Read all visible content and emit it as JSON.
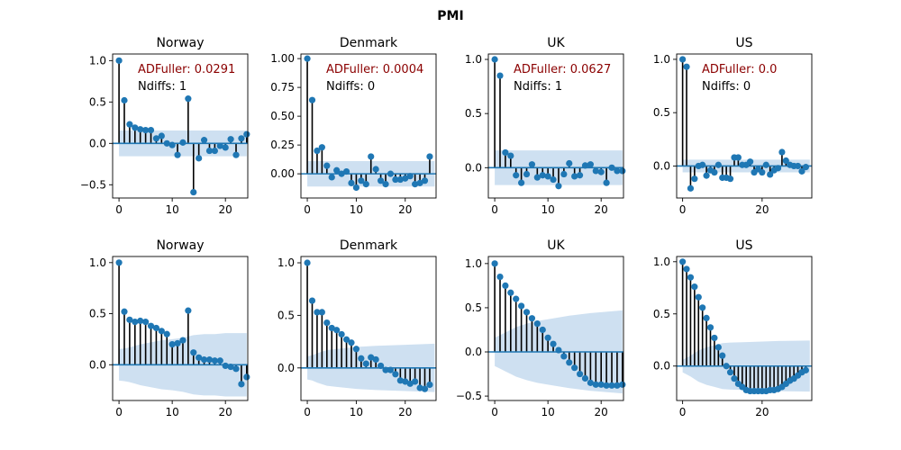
{
  "figure": {
    "title": "PMI",
    "colors": {
      "marker": "#1f77b4",
      "band": "#c6dbef",
      "stem": "#000000",
      "adf_text": "#8b0000",
      "ndiffs_text": "#000000"
    }
  },
  "chart_data": [
    {
      "type": "stem",
      "title": "Norway",
      "row": 0,
      "col": 0,
      "xlim": [
        -1.2,
        24.2
      ],
      "ylim": [
        -0.66,
        1.08
      ],
      "xticks": [
        0,
        10,
        20
      ],
      "yticks": [
        -0.5,
        0.0,
        0.5,
        1.0
      ],
      "ytick_labels": [
        "−0.5",
        "0.0",
        "0.5",
        "1.0"
      ],
      "values": [
        1.0,
        0.52,
        0.23,
        0.19,
        0.17,
        0.16,
        0.16,
        0.06,
        0.09,
        0.0,
        -0.02,
        -0.14,
        0.01,
        0.54,
        -0.59,
        -0.18,
        0.04,
        -0.09,
        -0.09,
        -0.03,
        -0.05,
        0.05,
        -0.14,
        0.06,
        0.11
      ],
      "ci_band": [
        [
          0.0,
          0.155
        ],
        [
          24.0,
          0.155
        ]
      ],
      "annotations": {
        "adf": "ADFuller: 0.0291",
        "ndiffs": "Ndiffs: 1"
      }
    },
    {
      "type": "stem",
      "title": "Denmark",
      "row": 0,
      "col": 1,
      "xlim": [
        -1.3,
        26.3
      ],
      "ylim": [
        -0.21,
        1.04
      ],
      "xticks": [
        0,
        10,
        20
      ],
      "yticks": [
        0.0,
        0.25,
        0.5,
        0.75,
        1.0
      ],
      "ytick_labels": [
        "0.00",
        "0.25",
        "0.50",
        "0.75",
        "1.00"
      ],
      "values": [
        1.0,
        0.64,
        0.2,
        0.23,
        0.07,
        -0.03,
        0.03,
        0.0,
        0.02,
        -0.08,
        -0.12,
        -0.06,
        -0.09,
        0.15,
        0.04,
        -0.06,
        -0.09,
        0.0,
        -0.05,
        -0.05,
        -0.04,
        -0.02,
        -0.09,
        -0.08,
        -0.06,
        0.15
      ],
      "ci_band": [
        [
          0.0,
          0.11
        ],
        [
          26.0,
          0.11
        ]
      ],
      "annotations": {
        "adf": "ADFuller: 0.0004",
        "ndiffs": "Ndiffs: 0"
      }
    },
    {
      "type": "stem",
      "title": "UK",
      "row": 0,
      "col": 2,
      "xlim": [
        -1.2,
        24.2
      ],
      "ylim": [
        -0.28,
        1.05
      ],
      "xticks": [
        0,
        10,
        20
      ],
      "yticks": [
        0.0,
        0.5,
        1.0
      ],
      "ytick_labels": [
        "0.0",
        "0.5",
        "1.0"
      ],
      "values": [
        1.0,
        0.85,
        0.14,
        0.11,
        -0.07,
        -0.14,
        -0.06,
        0.03,
        -0.09,
        -0.07,
        -0.08,
        -0.11,
        -0.17,
        -0.06,
        0.04,
        -0.08,
        -0.07,
        0.02,
        0.03,
        -0.03,
        -0.04,
        -0.14,
        0.0,
        -0.03,
        -0.03
      ],
      "ci_band": [
        [
          0.0,
          0.16
        ],
        [
          24.0,
          0.16
        ]
      ],
      "annotations": {
        "adf": "ADFuller: 0.0627",
        "ndiffs": "Ndiffs: 1"
      }
    },
    {
      "type": "stem",
      "title": "US",
      "row": 0,
      "col": 3,
      "xlim": [
        -1.5,
        32.5
      ],
      "ylim": [
        -0.3,
        1.05
      ],
      "xticks": [
        0,
        20
      ],
      "yticks": [
        0.0,
        0.5,
        1.0
      ],
      "ytick_labels": [
        "0.0",
        "0.5",
        "1.0"
      ],
      "values": [
        1.0,
        0.93,
        -0.21,
        -0.12,
        0.0,
        0.01,
        -0.09,
        -0.04,
        -0.06,
        0.01,
        -0.11,
        -0.11,
        -0.12,
        0.08,
        0.08,
        0.01,
        0.01,
        0.04,
        -0.06,
        -0.03,
        -0.06,
        0.01,
        -0.08,
        -0.04,
        -0.02,
        0.13,
        0.05,
        0.01,
        0.0,
        0.0,
        -0.05,
        -0.01
      ],
      "ci_band": [
        [
          0.0,
          0.06
        ],
        [
          32.0,
          0.06
        ]
      ],
      "annotations": {
        "adf": "ADFuller: 0.0",
        "ndiffs": "Ndiffs: 0"
      }
    },
    {
      "type": "stem",
      "title": "Norway",
      "row": 1,
      "col": 0,
      "xlim": [
        -1.2,
        24.2
      ],
      "ylim": [
        -0.35,
        1.06
      ],
      "xticks": [
        0,
        10,
        20
      ],
      "yticks": [
        0.0,
        0.5,
        1.0
      ],
      "ytick_labels": [
        "0.0",
        "0.5",
        "1.0"
      ],
      "values": [
        1.0,
        0.52,
        0.44,
        0.42,
        0.43,
        0.42,
        0.38,
        0.36,
        0.33,
        0.3,
        0.2,
        0.21,
        0.24,
        0.53,
        0.12,
        0.07,
        0.05,
        0.05,
        0.04,
        0.04,
        -0.01,
        -0.02,
        -0.04,
        -0.19,
        -0.12
      ],
      "ci_band": [
        [
          0.0,
          0.155
        ],
        [
          1.0,
          0.16
        ],
        [
          2.0,
          0.17
        ],
        [
          3.0,
          0.185
        ],
        [
          4.0,
          0.2
        ],
        [
          6.0,
          0.22
        ],
        [
          8.0,
          0.24
        ],
        [
          10.0,
          0.25
        ],
        [
          12.0,
          0.265
        ],
        [
          14.0,
          0.29
        ],
        [
          16.0,
          0.3
        ],
        [
          18.0,
          0.3
        ],
        [
          20.0,
          0.31
        ],
        [
          24.0,
          0.31
        ]
      ],
      "annotations": {}
    },
    {
      "type": "stem",
      "title": "Denmark",
      "row": 1,
      "col": 1,
      "xlim": [
        -1.3,
        26.3
      ],
      "ylim": [
        -0.31,
        1.06
      ],
      "xticks": [
        0,
        10,
        20
      ],
      "yticks": [
        0.0,
        0.5,
        1.0
      ],
      "ytick_labels": [
        "0.0",
        "0.5",
        "1.0"
      ],
      "values": [
        1.0,
        0.64,
        0.53,
        0.53,
        0.43,
        0.38,
        0.36,
        0.32,
        0.27,
        0.24,
        0.18,
        0.09,
        0.04,
        0.1,
        0.08,
        0.02,
        -0.02,
        -0.02,
        -0.06,
        -0.12,
        -0.13,
        -0.15,
        -0.13,
        -0.19,
        -0.2,
        -0.16
      ],
      "ci_band": [
        [
          0.0,
          0.11
        ],
        [
          1.0,
          0.12
        ],
        [
          2.0,
          0.14
        ],
        [
          3.0,
          0.155
        ],
        [
          4.0,
          0.17
        ],
        [
          6.0,
          0.18
        ],
        [
          8.0,
          0.19
        ],
        [
          10.0,
          0.2
        ],
        [
          14.0,
          0.21
        ],
        [
          20.0,
          0.22
        ],
        [
          26.0,
          0.23
        ]
      ],
      "annotations": {}
    },
    {
      "type": "stem",
      "title": "UK",
      "row": 1,
      "col": 2,
      "xlim": [
        -1.2,
        24.2
      ],
      "ylim": [
        -0.55,
        1.08
      ],
      "xticks": [
        0,
        10,
        20
      ],
      "yticks": [
        -0.5,
        0.0,
        0.5,
        1.0
      ],
      "ytick_labels": [
        "−0.5",
        "0.0",
        "0.5",
        "1.0"
      ],
      "values": [
        1.0,
        0.85,
        0.75,
        0.67,
        0.6,
        0.52,
        0.45,
        0.38,
        0.32,
        0.25,
        0.16,
        0.09,
        0.02,
        -0.05,
        -0.12,
        -0.18,
        -0.25,
        -0.3,
        -0.35,
        -0.37,
        -0.37,
        -0.38,
        -0.38,
        -0.38,
        -0.37
      ],
      "ci_band": [
        [
          0.0,
          0.16
        ],
        [
          1.0,
          0.19
        ],
        [
          2.0,
          0.22
        ],
        [
          3.0,
          0.25
        ],
        [
          4.0,
          0.28
        ],
        [
          6.0,
          0.32
        ],
        [
          8.0,
          0.35
        ],
        [
          10.0,
          0.37
        ],
        [
          14.0,
          0.41
        ],
        [
          18.0,
          0.44
        ],
        [
          24.0,
          0.47
        ]
      ],
      "annotations": {}
    },
    {
      "type": "stem",
      "title": "US",
      "row": 1,
      "col": 3,
      "xlim": [
        -1.5,
        32.5
      ],
      "ylim": [
        -0.33,
        1.05
      ],
      "xticks": [
        0,
        20
      ],
      "yticks": [
        0.0,
        0.5,
        1.0
      ],
      "ytick_labels": [
        "0.0",
        "0.5",
        "1.0"
      ],
      "values": [
        1.0,
        0.93,
        0.85,
        0.76,
        0.66,
        0.56,
        0.46,
        0.37,
        0.27,
        0.18,
        0.1,
        0.0,
        -0.06,
        -0.12,
        -0.17,
        -0.2,
        -0.23,
        -0.24,
        -0.24,
        -0.24,
        -0.24,
        -0.24,
        -0.23,
        -0.23,
        -0.22,
        -0.2,
        -0.17,
        -0.14,
        -0.12,
        -0.09,
        -0.06,
        -0.04
      ],
      "ci_band": [
        [
          0.0,
          0.06
        ],
        [
          1.0,
          0.08
        ],
        [
          2.0,
          0.1
        ],
        [
          3.0,
          0.125
        ],
        [
          4.0,
          0.15
        ],
        [
          6.0,
          0.18
        ],
        [
          8.0,
          0.2
        ],
        [
          10.0,
          0.22
        ],
        [
          12.0,
          0.225
        ],
        [
          16.0,
          0.23
        ],
        [
          24.0,
          0.24
        ],
        [
          32.0,
          0.245
        ]
      ],
      "annotations": {}
    }
  ]
}
